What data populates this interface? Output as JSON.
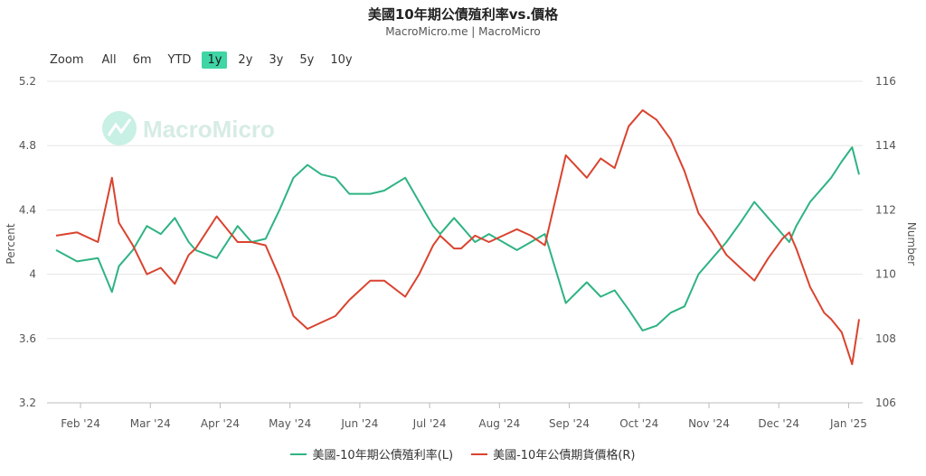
{
  "header": {
    "title": "美國10年期公債殖利率vs.價格",
    "subtitle": "MacroMicro.me | MacroMicro"
  },
  "range_selector": {
    "zoom_label": "Zoom",
    "buttons": [
      "All",
      "6m",
      "YTD",
      "1y",
      "2y",
      "3y",
      "5y",
      "10y"
    ],
    "active": "1y"
  },
  "watermark": "MacroMicro",
  "colors": {
    "yield": "#2fb383",
    "price": "#d9432f",
    "active_button": "#3fd5a4"
  },
  "chart_data": {
    "type": "line",
    "y_left": {
      "label": "Percent",
      "range": [
        3.2,
        5.2
      ],
      "ticks": [
        "5.2",
        "4.8",
        "4.4",
        "4",
        "3.6",
        "3.2"
      ]
    },
    "y_right": {
      "label": "Number",
      "range": [
        106,
        116
      ],
      "ticks": [
        "116",
        "114",
        "112",
        "110",
        "108",
        "106"
      ]
    },
    "x_ticks": [
      "Feb '24",
      "Mar '24",
      "Apr '24",
      "May '24",
      "Jun '24",
      "Jul '24",
      "Aug '24",
      "Sep '24",
      "Oct '24",
      "Nov '24",
      "Dec '24",
      "Jan '25"
    ],
    "series": [
      {
        "name": "美國-10年期公債殖利率(L)",
        "axis": "left",
        "x": [
          0,
          0.3,
          0.6,
          0.8,
          0.9,
          1.1,
          1.3,
          1.5,
          1.7,
          1.9,
          2.0,
          2.3,
          2.6,
          2.8,
          3.0,
          3.2,
          3.4,
          3.6,
          3.8,
          4.0,
          4.2,
          4.5,
          4.7,
          5.0,
          5.2,
          5.4,
          5.5,
          5.6,
          5.7,
          5.8,
          6.0,
          6.2,
          6.4,
          6.6,
          6.8,
          7.0,
          7.3,
          7.6,
          7.8,
          8.0,
          8.2,
          8.4,
          8.6,
          8.8,
          9.0,
          9.2,
          9.4,
          9.6,
          9.8,
          10.0,
          10.2,
          10.4,
          10.5,
          10.6,
          10.8,
          11.0,
          11.1,
          11.25,
          11.4,
          11.5
        ],
        "values": [
          4.15,
          4.08,
          4.1,
          3.89,
          4.05,
          4.15,
          4.3,
          4.25,
          4.35,
          4.2,
          4.15,
          4.1,
          4.3,
          4.2,
          4.22,
          4.4,
          4.6,
          4.68,
          4.62,
          4.6,
          4.5,
          4.5,
          4.52,
          4.6,
          4.45,
          4.3,
          4.25,
          4.3,
          4.35,
          4.3,
          4.2,
          4.25,
          4.2,
          4.15,
          4.2,
          4.25,
          3.82,
          3.95,
          3.86,
          3.9,
          3.78,
          3.65,
          3.68,
          3.76,
          3.8,
          4.0,
          4.1,
          4.2,
          4.32,
          4.45,
          4.35,
          4.25,
          4.2,
          4.3,
          4.45,
          4.55,
          4.6,
          4.7,
          4.79,
          4.62
        ]
      },
      {
        "name": "美國-10年公債期貨價格(R)",
        "axis": "right",
        "x": [
          0,
          0.3,
          0.6,
          0.8,
          0.9,
          1.1,
          1.3,
          1.5,
          1.7,
          1.9,
          2.0,
          2.3,
          2.6,
          2.8,
          3.0,
          3.2,
          3.4,
          3.6,
          3.8,
          4.0,
          4.2,
          4.5,
          4.7,
          5.0,
          5.2,
          5.4,
          5.5,
          5.6,
          5.7,
          5.8,
          6.0,
          6.2,
          6.4,
          6.6,
          6.8,
          7.0,
          7.3,
          7.6,
          7.8,
          8.0,
          8.2,
          8.4,
          8.6,
          8.8,
          9.0,
          9.2,
          9.4,
          9.6,
          9.8,
          10.0,
          10.2,
          10.4,
          10.5,
          10.6,
          10.8,
          11.0,
          11.1,
          11.25,
          11.4,
          11.5
        ],
        "values": [
          111.2,
          111.3,
          111.0,
          113.0,
          111.6,
          110.9,
          110.0,
          110.2,
          109.7,
          110.6,
          110.8,
          111.8,
          111.0,
          111.0,
          110.9,
          109.9,
          108.7,
          108.3,
          108.5,
          108.7,
          109.2,
          109.8,
          109.8,
          109.3,
          110.0,
          110.9,
          111.2,
          111.0,
          110.8,
          110.8,
          111.2,
          111.0,
          111.2,
          111.4,
          111.2,
          110.9,
          113.7,
          113.0,
          113.6,
          113.3,
          114.6,
          115.1,
          114.8,
          114.2,
          113.2,
          111.9,
          111.3,
          110.6,
          110.2,
          109.8,
          110.5,
          111.1,
          111.3,
          110.8,
          109.6,
          108.8,
          108.6,
          108.2,
          107.2,
          108.6
        ]
      }
    ],
    "grid": true,
    "legend_position": "bottom"
  }
}
